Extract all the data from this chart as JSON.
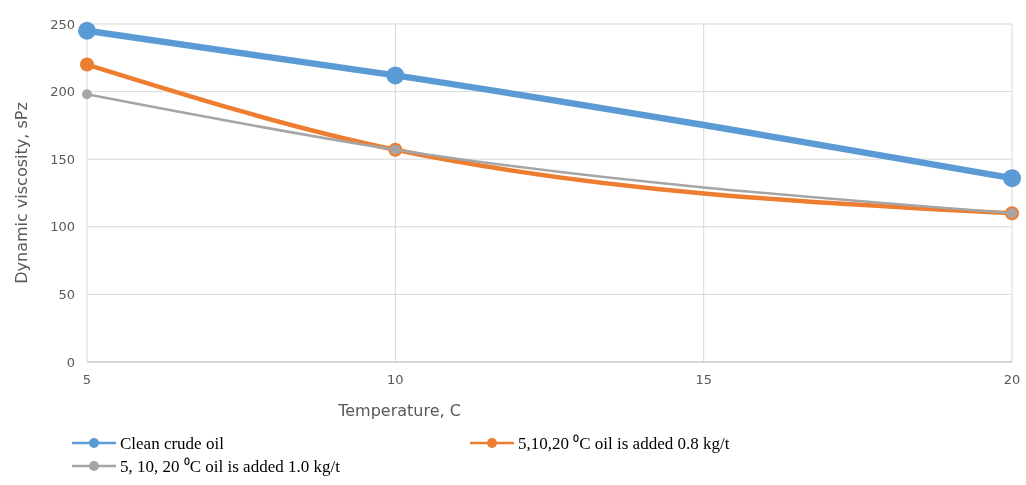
{
  "chart_data": {
    "type": "line",
    "xlabel": "Temperature, C",
    "ylabel": "Dynamic viscosity, sPz",
    "x": [
      5,
      10,
      20
    ],
    "xlim": [
      5,
      20
    ],
    "xticks": [
      5,
      10,
      15,
      20
    ],
    "ylim": [
      0,
      250
    ],
    "yticks": [
      0,
      50,
      100,
      150,
      200,
      250
    ],
    "grid": true,
    "legend": "bottom",
    "marker": "circle",
    "line_style": "solid",
    "series": [
      {
        "name": "Clean crude oil",
        "color": "#5b9bd5",
        "values": [
          245,
          212,
          136
        ]
      },
      {
        "name": "5,10,20 ⁰C oil is added 0.8 kg/t",
        "color": "#ed7d31",
        "values": [
          220,
          157,
          110
        ]
      },
      {
        "name": "5, 10, 20 ⁰C oil is added 1.0 kg/t",
        "color": "#a5a5a5",
        "values": [
          198,
          157,
          110
        ]
      }
    ]
  }
}
